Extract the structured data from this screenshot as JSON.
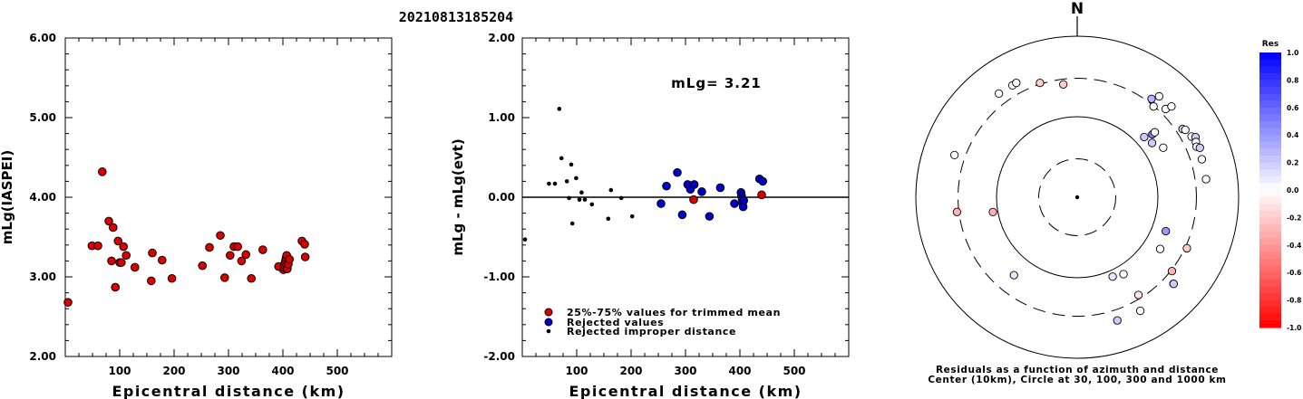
{
  "title": "20210813185204",
  "chart_data": [
    {
      "type": "scatter",
      "xlabel": "Epicentral distance (km)",
      "ylabel": "mLg(IASPEI)",
      "xlim": [
        0,
        600
      ],
      "ylim": [
        2.0,
        6.0
      ],
      "x_ticks": [
        "100",
        "200",
        "300",
        "400",
        "500"
      ],
      "y_ticks": [
        "2.00",
        "3.00",
        "4.00",
        "5.00",
        "6.00"
      ],
      "series": [
        {
          "marker": "red-filled-circle",
          "x": [
            5,
            49,
            60,
            68,
            80,
            85,
            88,
            92,
            97,
            100,
            103,
            107,
            112,
            128,
            158,
            160,
            178,
            196,
            252,
            265,
            285,
            293,
            303,
            310,
            317,
            324,
            332,
            342,
            363,
            392,
            401,
            402,
            403,
            404,
            405,
            406,
            407,
            408,
            410,
            412,
            435,
            440,
            441
          ],
          "y": [
            2.68,
            3.39,
            3.39,
            4.32,
            3.7,
            3.2,
            3.62,
            2.87,
            3.45,
            3.18,
            3.18,
            3.38,
            3.27,
            3.12,
            2.95,
            3.3,
            3.21,
            2.98,
            3.14,
            3.37,
            3.52,
            2.99,
            3.27,
            3.38,
            3.38,
            3.2,
            3.28,
            2.98,
            3.34,
            3.13,
            3.09,
            3.12,
            3.15,
            3.18,
            3.21,
            3.24,
            3.27,
            3.1,
            3.16,
            3.22,
            3.45,
            3.41,
            3.25
          ]
        }
      ]
    },
    {
      "type": "scatter",
      "xlabel": "Epicentral distance (km)",
      "ylabel": "mLg - mLg(evt)",
      "xlim": [
        0,
        600
      ],
      "ylim": [
        -2.0,
        2.0
      ],
      "x_ticks": [
        "100",
        "200",
        "300",
        "400",
        "500"
      ],
      "y_ticks": [
        "-2.00",
        "-1.00",
        "0.00",
        "1.00",
        "2.00"
      ],
      "annotation": "mLg= 3.21",
      "zero_line": 0,
      "series": [
        {
          "name": "25%-75% values for trimmed mean",
          "marker": "red-filled-circle",
          "x": [
            315,
            440
          ],
          "y": [
            -0.03,
            0.03
          ]
        },
        {
          "name": "Rejected values",
          "marker": "blue-filled-circle",
          "x": [
            255,
            265,
            285,
            294,
            304,
            309,
            316,
            330,
            344,
            364,
            390,
            402,
            403,
            404,
            405,
            406,
            407,
            436,
            442
          ],
          "y": [
            -0.08,
            0.14,
            0.31,
            -0.22,
            0.16,
            0.1,
            0.16,
            0.07,
            -0.24,
            0.12,
            -0.08,
            0.06,
            0.02,
            -0.02,
            -0.07,
            -0.12,
            -0.04,
            0.23,
            0.2
          ]
        },
        {
          "name": "Rejected improper distance",
          "marker": "black-dot",
          "x": [
            5,
            49,
            60,
            68,
            72,
            82,
            86,
            90,
            92,
            99,
            105,
            109,
            115,
            128,
            158,
            163,
            182,
            202
          ],
          "y": [
            -0.53,
            0.17,
            0.17,
            1.11,
            0.49,
            0.2,
            -0.01,
            0.41,
            -0.33,
            0.24,
            -0.03,
            0.06,
            -0.03,
            -0.09,
            -0.27,
            0.09,
            -0.01,
            -0.24
          ]
        }
      ]
    },
    {
      "type": "scatter",
      "subtype": "polar",
      "north_label": "N",
      "caption_lines": [
        "Residuals as a function of azimuth and distance",
        "Center (10km), Circle at 30, 100, 300 and 1000 km"
      ],
      "rings_km": [
        30,
        100,
        300,
        1000
      ],
      "ring_styles": [
        "dashed",
        "solid",
        "dashed",
        "solid"
      ],
      "azimuth_deg": [
        323,
        330,
        332,
        342,
        353,
        37,
        40,
        45,
        48,
        50,
        54,
        60,
        50,
        39,
        46,
        57,
        58,
        62,
        63,
        65,
        67,
        68,
        73,
        82,
        111,
        115,
        122,
        128,
        132,
        132,
        148,
        149,
        151,
        156,
        162,
        219,
        289,
        260,
        263
      ],
      "distance_km": [
        410,
        402,
        406,
        311,
        258,
        339,
        296,
        355,
        131,
        164,
        140,
        170,
        180,
        410,
        420,
        360,
        380,
        403,
        442,
        420,
        405,
        436,
        412,
        409,
        150,
        316,
        163,
        309,
        403,
        405,
        270,
        130,
        410,
        120,
        406,
        176,
        406,
        115,
        317
      ],
      "residual": [
        0.0,
        0.0,
        0.0,
        -0.2,
        -0.2,
        0.3,
        0.0,
        0.0,
        0.2,
        0.5,
        0.2,
        0.0,
        0.0,
        0.0,
        0.0,
        0.2,
        0.0,
        0.0,
        0.2,
        0.0,
        0.0,
        0.2,
        0.0,
        0.0,
        0.4,
        -0.2,
        0.0,
        -0.3,
        0.0,
        0.2,
        -0.1,
        0.0,
        0.0,
        0.1,
        0.2,
        0.1,
        0.0,
        -0.3,
        -0.3
      ]
    },
    {
      "type": "heatmap",
      "subtype": "colorbar",
      "title": "Res",
      "ticks": [
        "1.0",
        "0.8",
        "0.6",
        "0.4",
        "0.2",
        "0.0",
        "-0.2",
        "-0.4",
        "-0.6",
        "-0.8",
        "-1.0"
      ],
      "range": [
        -1.0,
        1.0
      ],
      "colors": {
        "positive": "#0000ff",
        "zero": "#ffffff",
        "negative": "#ff0000"
      }
    }
  ]
}
